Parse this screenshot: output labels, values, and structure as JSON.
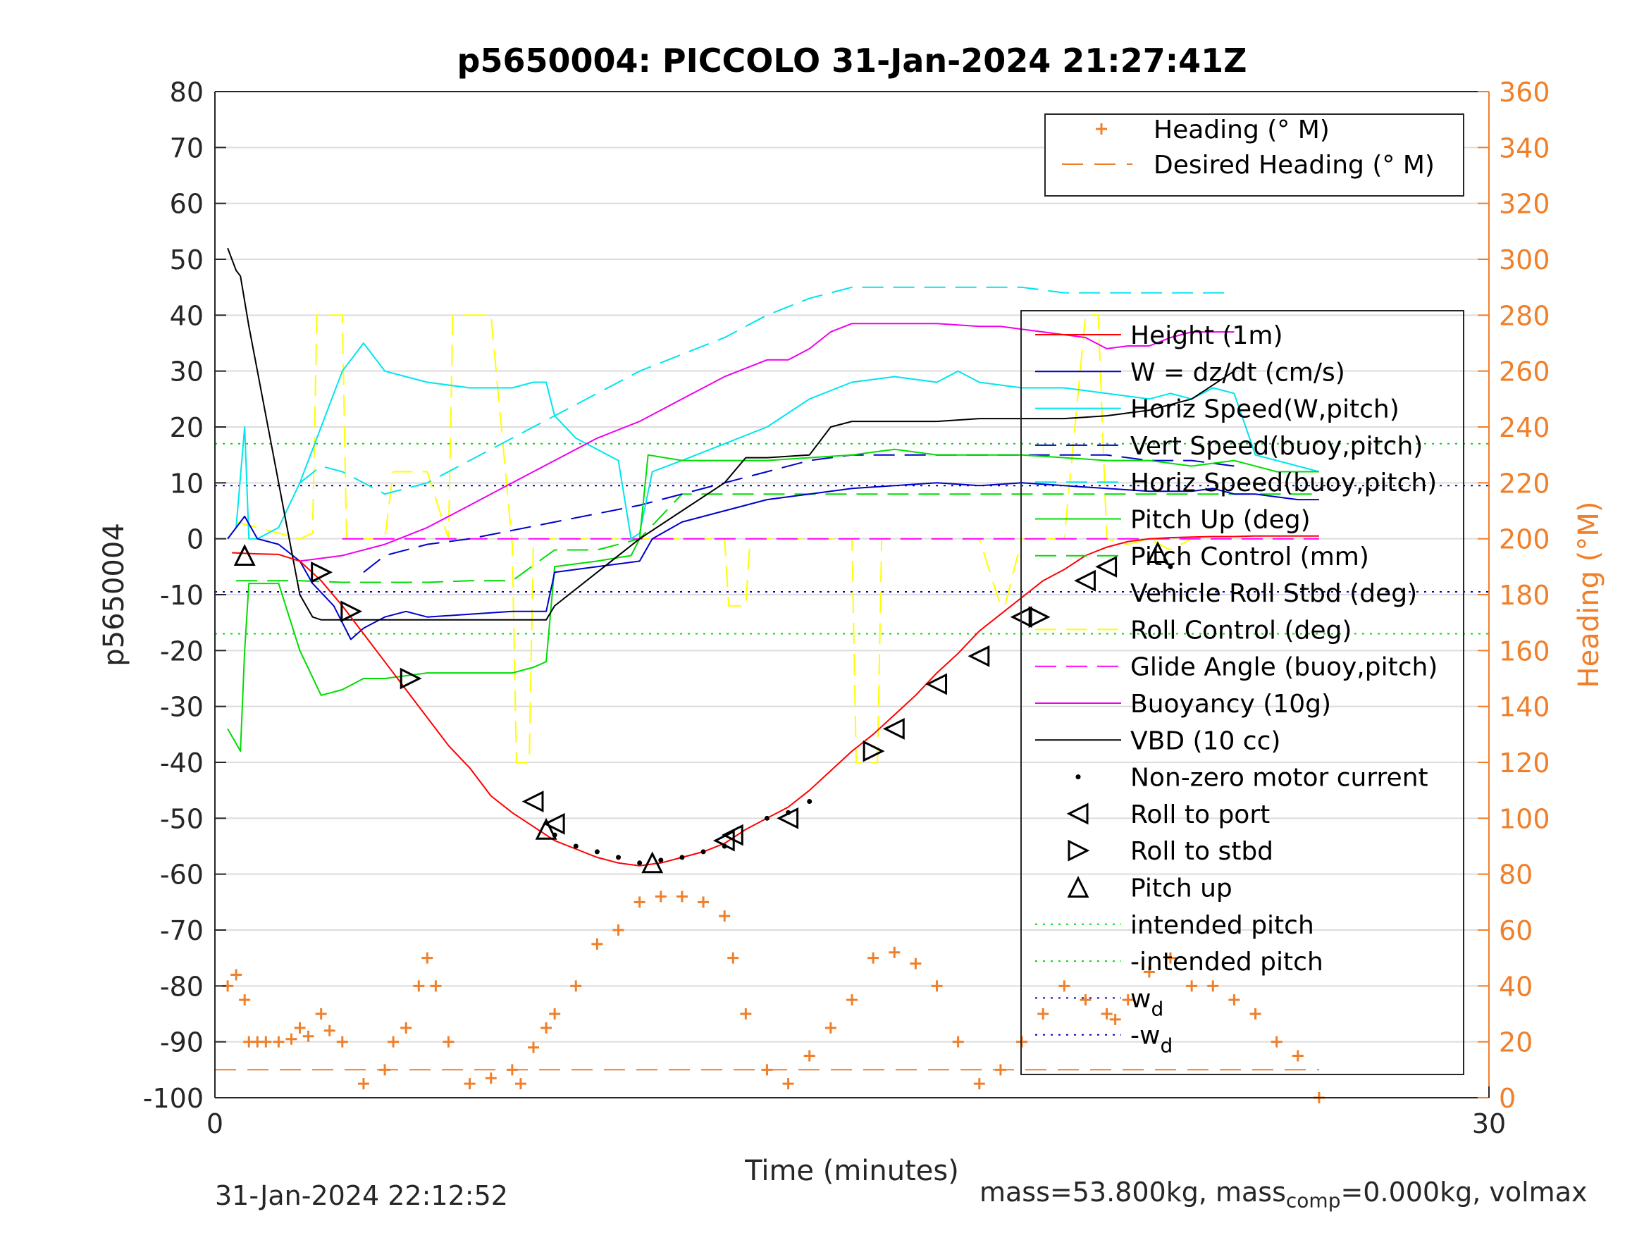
{
  "chart_data": {
    "type": "line",
    "title": "p5650004: PICCOLO 31-Jan-2024 21:27:41Z",
    "xlabel": "Time (minutes)",
    "ylabel_left": "p5650004",
    "ylabel_right": "Heading (°M)",
    "xlim": [
      0,
      30
    ],
    "ylim_left": [
      -100,
      80
    ],
    "ylim_right": [
      0,
      360
    ],
    "xticks": [
      0,
      30
    ],
    "yticks_left": [
      80,
      70,
      60,
      50,
      40,
      30,
      20,
      10,
      0,
      -10,
      -20,
      -30,
      -40,
      -50,
      -60,
      -70,
      -80,
      -90,
      -100
    ],
    "yticks_right": [
      360,
      340,
      320,
      300,
      280,
      260,
      240,
      220,
      200,
      180,
      160,
      140,
      120,
      100,
      80,
      60,
      40,
      20,
      0
    ],
    "grid": "horizontal",
    "colors": {
      "axis_right": "#F07F2A",
      "height": "#FF0000",
      "w": "#0000CC",
      "horiz_speed": "#00E5EE",
      "vert_speed": "#0000CC",
      "pitch": "#00DD00",
      "roll": "#FFFF00",
      "glide": "#FF00FF",
      "buoyancy": "#EE00EE",
      "vbd": "#000000",
      "heading": "#F07F2A",
      "intended_pitch": "#00DD00",
      "wd": "#0000CC"
    },
    "legend_top": {
      "placement": "top-right",
      "entries": [
        "Heading (° M)",
        "Desired Heading (° M)"
      ]
    },
    "legend_main": {
      "placement": "right",
      "entries": [
        "Height (1m)",
        "W = dz/dt (cm/s)",
        "Horiz Speed(W,pitch)",
        "Vert Speed(buoy,pitch)",
        "Horiz Speed(buoy,pitch)",
        "Pitch Up (deg)",
        "Pitch Control (mm)",
        "Vehicle Roll Stbd (deg)",
        "Roll Control (deg)",
        "Glide Angle (buoy,pitch)",
        "Buoyancy (10g)",
        "VBD (10 cc)",
        "Non-zero motor current",
        "Roll to port",
        "Roll to stbd",
        "Pitch up",
        "intended pitch",
        "-intended pitch",
        "w_d",
        "-w_d"
      ]
    },
    "series": {
      "height": {
        "x": [
          0.4,
          1.0,
          1.5,
          2.0,
          2.5,
          3.0,
          3.5,
          4.0,
          4.5,
          5.0,
          5.5,
          6.0,
          6.5,
          7.0,
          7.5,
          8.0,
          8.5,
          9.0,
          9.5,
          10.0,
          10.5,
          11.0,
          11.5,
          12.0,
          12.5,
          13.0,
          13.5,
          14.0,
          14.5,
          15.0,
          15.5,
          16.0,
          16.5,
          17.0,
          17.5,
          18.0,
          18.5,
          19.0,
          19.5,
          20.0,
          20.5,
          21.0,
          21.5,
          22.0,
          22.5,
          23.0,
          23.5,
          24.0,
          24.5,
          25.0,
          25.5,
          26.0
        ],
        "y": [
          -2.5,
          -2.7,
          -2.8,
          -4.0,
          -7.5,
          -12,
          -17,
          -22,
          -27,
          -32,
          -37,
          -41,
          -46,
          -49,
          -51.5,
          -54,
          -55.5,
          -57,
          -58,
          -58.5,
          -58,
          -57,
          -56,
          -54.5,
          -52,
          -50,
          -48,
          -45,
          -41.5,
          -38,
          -35,
          -31.5,
          -28,
          -24,
          -20.5,
          -16.5,
          -13.5,
          -10.5,
          -7.5,
          -5.5,
          -3,
          -1.5,
          -0.5,
          0,
          0.2,
          0.3,
          0.4,
          0.4,
          0.5,
          0.5,
          0.5,
          0.5
        ]
      },
      "w": {
        "x": [
          0.3,
          0.7,
          1.0,
          1.5,
          2.0,
          2.3,
          2.8,
          3.2,
          3.5,
          4.0,
          4.5,
          5.0,
          6.0,
          7.0,
          7.5,
          7.8,
          8.0,
          9.0,
          10.0,
          10.3,
          11.0,
          12.0,
          13.0,
          14.0,
          15.0,
          16.0,
          17.0,
          18.0,
          19.0,
          20.0,
          21.0,
          22.0,
          23.0,
          23.5,
          24.0,
          24.5,
          25.0,
          25.5,
          26.0
        ],
        "y": [
          0,
          4,
          0,
          -1,
          -4,
          -8,
          -12,
          -18,
          -16,
          -14,
          -13,
          -14,
          -13.5,
          -13,
          -13,
          -13,
          -6,
          -5,
          -4,
          0,
          3,
          5,
          7,
          8,
          9,
          9.5,
          10,
          9.5,
          10,
          9.5,
          9,
          8.5,
          8.5,
          9,
          8,
          8,
          7.5,
          7,
          7
        ]
      },
      "horiz_speed_w": {
        "x": [
          0.3,
          0.5,
          0.7,
          0.8,
          1.0,
          1.5,
          2.0,
          2.5,
          3.0,
          3.5,
          3.7,
          4.0,
          4.5,
          5.0,
          6.0,
          7.0,
          7.5,
          7.8,
          8.0,
          8.5,
          9.0,
          9.5,
          9.8,
          10.0,
          10.3,
          11.0,
          12.0,
          13.0,
          14.0,
          15.0,
          16.0,
          17.0,
          17.5,
          18.0,
          19.0,
          20.0,
          21.0,
          22.0,
          22.5,
          23.0,
          23.5,
          24.0,
          24.5,
          25.0,
          25.5,
          26.0
        ],
        "y": [
          0,
          2,
          20,
          0,
          0,
          2,
          10,
          20,
          30,
          35,
          33,
          30,
          29,
          28,
          27,
          27,
          28,
          28,
          22,
          18,
          16,
          14,
          0,
          1,
          12,
          14,
          17,
          20,
          25,
          28,
          29,
          28,
          30,
          28,
          27,
          27,
          26,
          25,
          26,
          25,
          27,
          26,
          15,
          14,
          13,
          12
        ]
      },
      "horiz_speed_buoy": {
        "x": [
          2.0,
          2.5,
          3.0,
          3.5,
          4.0,
          5.0,
          6.0,
          8.0,
          10.0,
          12.0,
          13.0,
          14.0,
          15.0,
          16.0,
          17.0,
          18.0,
          19.0,
          20.0,
          21.0,
          22.0,
          23.0,
          24.0
        ],
        "y": [
          10,
          13,
          12,
          10,
          8,
          10,
          14,
          22,
          30,
          36,
          40,
          43,
          45,
          45,
          45,
          45,
          45,
          44,
          44,
          44,
          44,
          44
        ]
      },
      "vert_speed": {
        "x": [
          3.5,
          4.0,
          5.0,
          6.0,
          8.0,
          10.0,
          12.0,
          13.0,
          14.0,
          15.0,
          16.0,
          17.0,
          18.0,
          19.0,
          20.0,
          21.0,
          22.0,
          23.0,
          24.0
        ],
        "y": [
          -6,
          -3,
          -1,
          0,
          3,
          6,
          10,
          12,
          14,
          15,
          15,
          15,
          15,
          15,
          15,
          15,
          14,
          14,
          13
        ]
      },
      "pitch_up": {
        "x": [
          0.3,
          0.6,
          0.7,
          0.8,
          1.0,
          1.5,
          2.0,
          2.5,
          3.0,
          3.5,
          4.0,
          5.0,
          6.0,
          7.0,
          7.5,
          7.8,
          8.0,
          9.0,
          9.8,
          10.0,
          10.2,
          11.0,
          12.0,
          13.0,
          14.0,
          15.0,
          16.0,
          17.0,
          18.0,
          19.0,
          20.0,
          21.0,
          22.0,
          23.0,
          24.0,
          25.0,
          26.0
        ],
        "y": [
          -34,
          -38,
          -20,
          -8,
          -8,
          -8,
          -20,
          -28,
          -27,
          -25,
          -25,
          -24,
          -24,
          -24,
          -23,
          -22,
          -5,
          -4,
          -3,
          0,
          15,
          14,
          14,
          14,
          14.5,
          15,
          16,
          15,
          15,
          15,
          14.5,
          14,
          14,
          13,
          14,
          12,
          12
        ]
      },
      "pitch_control": {
        "x": [
          0.5,
          1.0,
          2.0,
          3.0,
          4.0,
          5.0,
          6.0,
          7.0,
          8.0,
          9.0,
          10.0,
          11.0,
          12.0,
          13.0,
          14.0,
          15.0,
          16.0,
          17.0,
          18.0,
          19.0,
          20.0,
          21.0,
          22.0,
          23.0,
          24.0,
          25.0,
          26.0
        ],
        "y": [
          -7.5,
          -7.5,
          -7.5,
          -7.8,
          -7.8,
          -7.8,
          -7.5,
          -7.5,
          -2,
          -2,
          0,
          8,
          8,
          8,
          8,
          8,
          8,
          8,
          8,
          8,
          8,
          8,
          8,
          8,
          8,
          8,
          8
        ]
      },
      "roll_control": {
        "x": [
          0.5,
          1.0,
          1.5,
          2.0,
          2.3,
          2.4,
          2.6,
          3.0,
          3.1,
          3.3,
          4.0,
          4.2,
          4.5,
          5.0,
          5.5,
          5.6,
          6.0,
          6.5,
          7.0,
          7.1,
          7.4,
          7.5,
          8.0,
          9.0,
          10.0,
          11.0,
          12.0,
          12.1,
          12.5,
          12.6,
          13.0,
          14.0,
          15.0,
          15.1,
          15.6,
          15.7,
          16.0,
          17.0,
          17.5,
          17.6,
          18.0,
          18.5,
          18.6,
          19.0,
          19.5,
          20.0,
          20.5,
          20.8,
          21.0,
          21.5,
          22.0,
          22.5,
          23.0,
          24.0,
          25.0,
          26.0
        ],
        "y": [
          3,
          2,
          1,
          0,
          1,
          40,
          40,
          40,
          0,
          0,
          0,
          12,
          12,
          12,
          0,
          40,
          40,
          40,
          -1,
          -40,
          -40,
          0,
          0,
          0,
          0,
          0,
          0,
          -12,
          -12,
          0,
          0,
          0,
          0,
          -40,
          -40,
          0,
          0,
          0,
          0,
          0,
          0,
          -12,
          -12,
          0,
          0,
          0,
          40,
          40,
          0,
          -1,
          0,
          -2,
          0,
          0,
          0,
          0
        ]
      },
      "glide_angle": {
        "x": [
          3.0,
          5.0,
          8.0,
          10.0,
          12.0,
          15.0,
          18.0,
          21.0,
          24.0,
          26.0
        ],
        "y": [
          0,
          0,
          0,
          0,
          0,
          0,
          0,
          0,
          0,
          0
        ]
      },
      "buoyancy": {
        "x": [
          2.0,
          3.0,
          4.0,
          5.0,
          6.0,
          7.0,
          8.0,
          9.0,
          10.0,
          11.0,
          12.0,
          13.0,
          13.5,
          14.0,
          14.5,
          15.0,
          16.0,
          17.0,
          18.0,
          18.5,
          19.0,
          19.5,
          20.0,
          20.5,
          21.0,
          21.5,
          22.0,
          22.5,
          23.0,
          24.0
        ],
        "y": [
          -4,
          -3,
          -1,
          2,
          6,
          10,
          14,
          18,
          21,
          25,
          29,
          32,
          32,
          34,
          37,
          38.5,
          38.5,
          38.5,
          38,
          38,
          37.5,
          37,
          36.5,
          36,
          34,
          34.5,
          34.5,
          36,
          37,
          37
        ]
      },
      "vbd": {
        "x": [
          0.3,
          0.5,
          0.6,
          0.8,
          1.0,
          1.5,
          2.0,
          2.3,
          2.5,
          3.0,
          4.0,
          5.0,
          6.0,
          7.0,
          7.5,
          7.8,
          8.0,
          9.0,
          10.0,
          11.0,
          12.0,
          12.5,
          13.0,
          14.0,
          14.5,
          15.0,
          16.0,
          17.0,
          18.0,
          19.0,
          19.5,
          20.0,
          21.0,
          22.0,
          23.0,
          24.0
        ],
        "y": [
          52,
          48,
          47,
          38,
          30,
          10,
          -10,
          -14,
          -14.5,
          -14.5,
          -14.5,
          -14.5,
          -14.5,
          -14.5,
          -14.5,
          -14.5,
          -12,
          -6,
          0,
          5,
          10,
          14.5,
          14.5,
          15,
          20,
          21,
          21,
          21,
          21.5,
          21.5,
          21.5,
          21.5,
          22,
          23,
          25,
          30
        ]
      },
      "heading": {
        "x": [
          0.3,
          0.5,
          0.7,
          0.8,
          1.0,
          1.2,
          1.5,
          1.8,
          2.0,
          2.2,
          2.5,
          2.7,
          3.0,
          3.5,
          4.0,
          4.2,
          4.5,
          4.8,
          5.0,
          5.2,
          5.5,
          6.0,
          6.5,
          7.0,
          7.2,
          7.5,
          7.8,
          8.0,
          8.5,
          9.0,
          9.5,
          10.0,
          10.5,
          11.0,
          11.5,
          12.0,
          12.2,
          12.5,
          13.0,
          13.5,
          14.0,
          14.5,
          15.0,
          15.5,
          16.0,
          16.5,
          17.0,
          17.5,
          18.0,
          18.5,
          19.0,
          19.5,
          20.0,
          20.5,
          21.0,
          21.2,
          21.5,
          22.0,
          22.5,
          23.0,
          23.5,
          24.0,
          24.5,
          25.0,
          25.5,
          26.0
        ],
        "y": [
          40,
          44,
          35,
          20,
          20,
          20,
          20,
          21,
          25,
          22,
          30,
          24,
          20,
          5,
          10,
          20,
          25,
          40,
          50,
          40,
          20,
          5,
          7,
          10,
          5,
          18,
          25,
          30,
          40,
          55,
          60,
          70,
          72,
          72,
          70,
          65,
          50,
          30,
          10,
          5,
          15,
          25,
          35,
          50,
          52,
          48,
          40,
          20,
          5,
          10,
          20,
          30,
          40,
          35,
          30,
          28,
          35,
          45,
          50,
          40,
          40,
          35,
          30,
          20,
          15,
          0
        ]
      },
      "desired_heading": {
        "x": [
          0,
          26
        ],
        "y": [
          10,
          10
        ]
      },
      "intended_pitch": {
        "x": [
          0,
          30
        ],
        "y": [
          17,
          17
        ]
      },
      "neg_intended_pitch": {
        "x": [
          0,
          30
        ],
        "y": [
          -17,
          -17
        ]
      },
      "wd": {
        "x": [
          0,
          30
        ],
        "y": [
          9.5,
          9.5
        ]
      },
      "neg_wd": {
        "x": [
          0,
          30
        ],
        "y": [
          -9.5,
          -9.5
        ]
      },
      "motor_dots": {
        "x": [
          8.0,
          8.5,
          9.0,
          9.5,
          10.0,
          10.5,
          11.0,
          11.5,
          12.0,
          13.0,
          13.5,
          14.0,
          22.5
        ],
        "y": [
          -53,
          -55,
          -56,
          -57,
          -58,
          -57.5,
          -57,
          -56,
          -55,
          -50,
          -49,
          -47,
          -5
        ]
      },
      "roll_to_port": {
        "x": [
          7.5,
          8.0,
          12.0,
          12.2,
          13.5,
          16.0,
          17.0,
          18.0,
          19.0,
          20.5,
          21.0
        ],
        "y": [
          -47,
          -51,
          -54,
          -53,
          -50,
          -34,
          -26,
          -21,
          -14,
          -7.5,
          -5
        ]
      },
      "roll_to_stbd": {
        "x": [
          2.5,
          3.2,
          4.6,
          15.5,
          19.4
        ],
        "y": [
          -6,
          -13,
          -25,
          -38,
          -14
        ]
      },
      "pitch_up_marks": {
        "x": [
          0.7,
          7.8,
          10.3,
          22.2
        ],
        "y": [
          -3,
          -52,
          -58,
          -2.5
        ]
      }
    }
  },
  "footer": {
    "left": "31-Jan-2024 22:12:52",
    "right_prefix": "mass=53.800kg, mass",
    "right_sub": "comp",
    "right_suffix": "=0.000kg, volmax"
  }
}
